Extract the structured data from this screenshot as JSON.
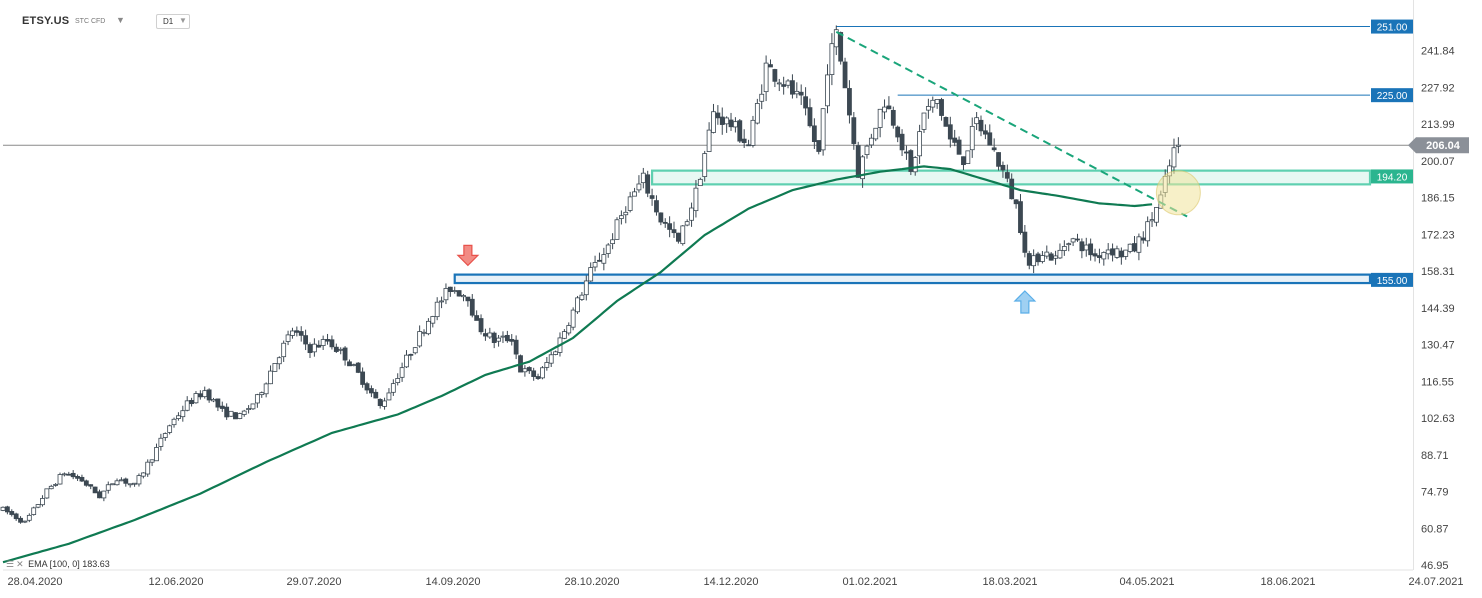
{
  "header": {
    "symbol": "ETSY.US",
    "type_label": "STC CFD",
    "timeframe": "D1",
    "caret_icon": "chevron-down-icon"
  },
  "legend": {
    "ema_label": "EMA",
    "ema_params": "[100, 0]",
    "ema_value": "183.63"
  },
  "colors": {
    "candle": "#3c4852",
    "ema": "#0f7a52",
    "trendline": "#1aa57a",
    "support_box": "#1a74b8",
    "resistance_box": "#5ed0b0",
    "label_blue": "#1a74b8",
    "label_green": "#2bb58f",
    "current_price_bg": "#8b9098",
    "arrow_down": "#e8524b",
    "arrow_up": "#5aaee8",
    "highlight": "#f1e39a"
  },
  "chart_data": {
    "type": "candlestick",
    "symbol": "ETSY.US",
    "timeframe": "D1",
    "current_price": 206.04,
    "ylim": [
      46.95,
      255.76
    ],
    "y_ticks": [
      "241.84",
      "227.92",
      "213.99",
      "200.07",
      "186.15",
      "172.23",
      "158.31",
      "144.39",
      "130.47",
      "116.55",
      "102.63",
      "88.71",
      "74.79",
      "60.87",
      "46.95"
    ],
    "x_ticks": [
      "28.04.2020",
      "12.06.2020",
      "29.07.2020",
      "14.09.2020",
      "28.10.2020",
      "14.12.2020",
      "01.02.2021",
      "18.03.2021",
      "04.05.2021",
      "18.06.2021",
      "24.07.2021"
    ],
    "price_path": [
      [
        0,
        68
      ],
      [
        5,
        63
      ],
      [
        10,
        75
      ],
      [
        14,
        82
      ],
      [
        18,
        79
      ],
      [
        22,
        73
      ],
      [
        26,
        80
      ],
      [
        30,
        77
      ],
      [
        34,
        88
      ],
      [
        38,
        100
      ],
      [
        42,
        108
      ],
      [
        46,
        113
      ],
      [
        50,
        105
      ],
      [
        54,
        103
      ],
      [
        58,
        110
      ],
      [
        62,
        124
      ],
      [
        66,
        136
      ],
      [
        70,
        129
      ],
      [
        74,
        132
      ],
      [
        78,
        126
      ],
      [
        82,
        117
      ],
      [
        86,
        107
      ],
      [
        90,
        119
      ],
      [
        94,
        131
      ],
      [
        98,
        143
      ],
      [
        102,
        152
      ],
      [
        106,
        149
      ],
      [
        108,
        138
      ],
      [
        112,
        132
      ],
      [
        116,
        133
      ],
      [
        118,
        121
      ],
      [
        122,
        118
      ],
      [
        126,
        129
      ],
      [
        130,
        143
      ],
      [
        134,
        158
      ],
      [
        138,
        168
      ],
      [
        142,
        183
      ],
      [
        146,
        193
      ],
      [
        150,
        178
      ],
      [
        154,
        169
      ],
      [
        158,
        188
      ],
      [
        162,
        218
      ],
      [
        166,
        214
      ],
      [
        170,
        206
      ],
      [
        174,
        236
      ],
      [
        178,
        230
      ],
      [
        182,
        222
      ],
      [
        186,
        203
      ],
      [
        188,
        236
      ],
      [
        190,
        248
      ],
      [
        192,
        229
      ],
      [
        195,
        196
      ],
      [
        198,
        210
      ],
      [
        201,
        223
      ],
      [
        204,
        212
      ],
      [
        207,
        195
      ],
      [
        210,
        218
      ],
      [
        213,
        223
      ],
      [
        216,
        208
      ],
      [
        219,
        201
      ],
      [
        222,
        215
      ],
      [
        225,
        207
      ],
      [
        228,
        196
      ],
      [
        231,
        183
      ],
      [
        234,
        160
      ],
      [
        237,
        166
      ],
      [
        240,
        163
      ],
      [
        243,
        171
      ],
      [
        246,
        168
      ],
      [
        249,
        164
      ],
      [
        252,
        167
      ],
      [
        255,
        165
      ],
      [
        258,
        167
      ],
      [
        261,
        175
      ],
      [
        264,
        186
      ],
      [
        267,
        204
      ],
      [
        268,
        206.04
      ]
    ],
    "ema": {
      "name": "EMA [100, 0]",
      "last": 183.63,
      "path": [
        [
          0,
          48
        ],
        [
          15,
          55
        ],
        [
          30,
          64
        ],
        [
          45,
          74
        ],
        [
          60,
          86
        ],
        [
          75,
          97
        ],
        [
          90,
          104
        ],
        [
          100,
          111
        ],
        [
          110,
          119
        ],
        [
          120,
          124
        ],
        [
          130,
          133
        ],
        [
          140,
          147
        ],
        [
          150,
          158
        ],
        [
          160,
          172
        ],
        [
          170,
          182
        ],
        [
          180,
          189
        ],
        [
          190,
          193
        ],
        [
          200,
          196
        ],
        [
          210,
          198
        ],
        [
          216,
          197
        ],
        [
          222,
          194
        ],
        [
          232,
          189
        ],
        [
          240,
          187
        ],
        [
          250,
          184
        ],
        [
          258,
          183
        ],
        [
          262,
          183.63
        ]
      ]
    },
    "levels": [
      {
        "label": "251.00",
        "value": 251.0,
        "style": "line",
        "from_day": 190
      },
      {
        "label": "225.00",
        "value": 225.0,
        "style": "line",
        "from_day": 204
      },
      {
        "label": "194.20",
        "value": 194.2,
        "style": "zone",
        "low": 191.2,
        "high": 196.4,
        "from_day": 148
      },
      {
        "label": "155.00",
        "value": 155.0,
        "style": "zone",
        "low": 153.8,
        "high": 157.0,
        "from_day": 103
      }
    ],
    "trendline": {
      "start": [
        190,
        249
      ],
      "end": [
        270,
        179
      ]
    },
    "annotations": [
      {
        "type": "arrow-down",
        "day": 106,
        "price": 162
      },
      {
        "type": "arrow-up",
        "day": 233,
        "price": 147
      },
      {
        "type": "highlight-circle",
        "day": 268,
        "price": 188
      }
    ]
  }
}
